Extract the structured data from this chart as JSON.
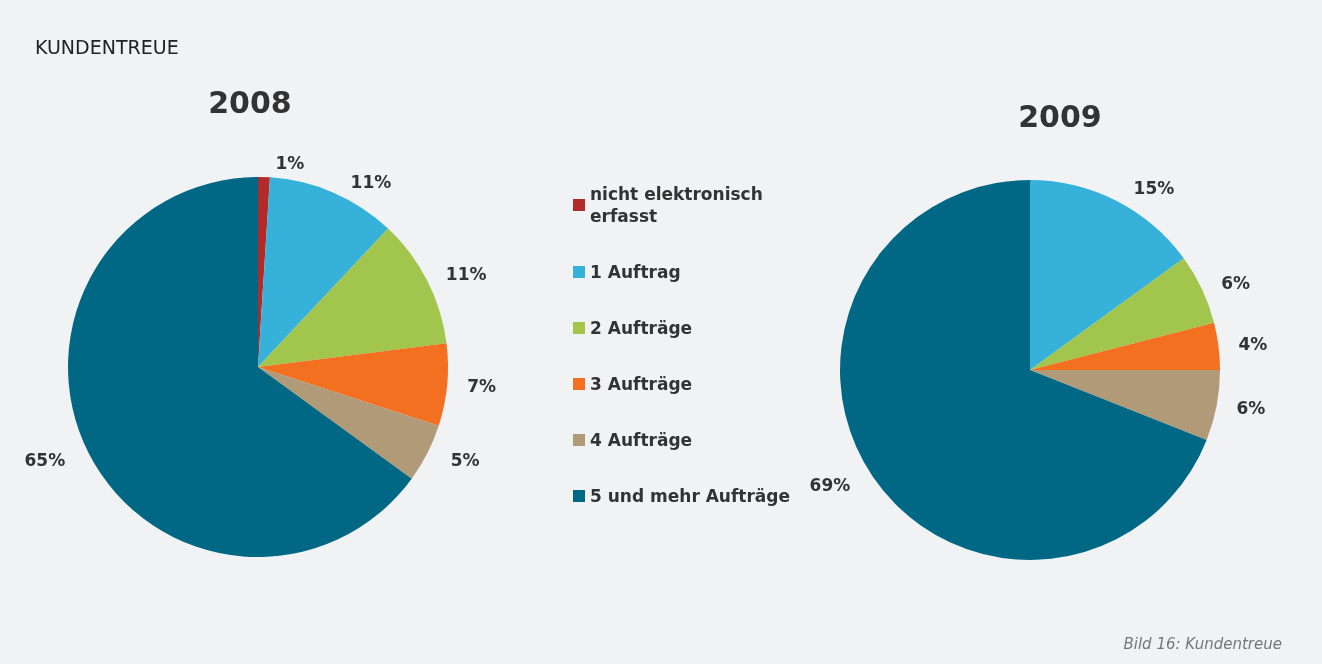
{
  "chart_data": {
    "type": "pie",
    "title": "KUNDENTREUE",
    "annotations": [
      "Bild 16: Kundentreue"
    ],
    "categories": [
      "nicht elektronisch erfasst",
      "1 Auftrag",
      "2 Aufträge",
      "3 Aufträge",
      "4 Aufträge",
      "5 und mehr Aufträge"
    ],
    "colors": [
      "#b22a2a",
      "#36b2da",
      "#a1c54d",
      "#f37021",
      "#b09a78",
      "#006884"
    ],
    "legend": "right",
    "series": [
      {
        "name": "2008",
        "values": [
          1,
          11,
          11,
          7,
          5,
          65
        ],
        "value_labels": [
          "1%",
          "11%",
          "11%",
          "7%",
          "5%",
          "65%"
        ]
      },
      {
        "name": "2009",
        "values": [
          null,
          15,
          6,
          4,
          6,
          69
        ],
        "value_labels": [
          null,
          "15%",
          "6%",
          "4%",
          "6%",
          "69%"
        ]
      }
    ]
  }
}
